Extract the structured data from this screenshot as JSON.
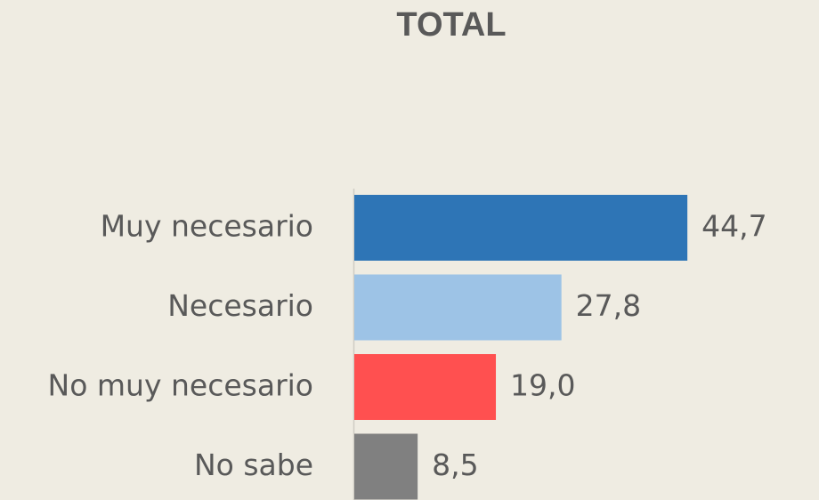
{
  "chart_data": {
    "type": "hbar",
    "title": "TOTAL",
    "categories": [
      "Muy necesario",
      "Necesario",
      "No muy necesario",
      "No sabe"
    ],
    "values": [
      44.7,
      27.8,
      19.0,
      8.5
    ],
    "value_labels": [
      "44,7",
      "27,8",
      "19,0",
      "8,5"
    ],
    "colors": [
      "#2e75b6",
      "#9dc3e6",
      "#ff5050",
      "#808080"
    ]
  }
}
